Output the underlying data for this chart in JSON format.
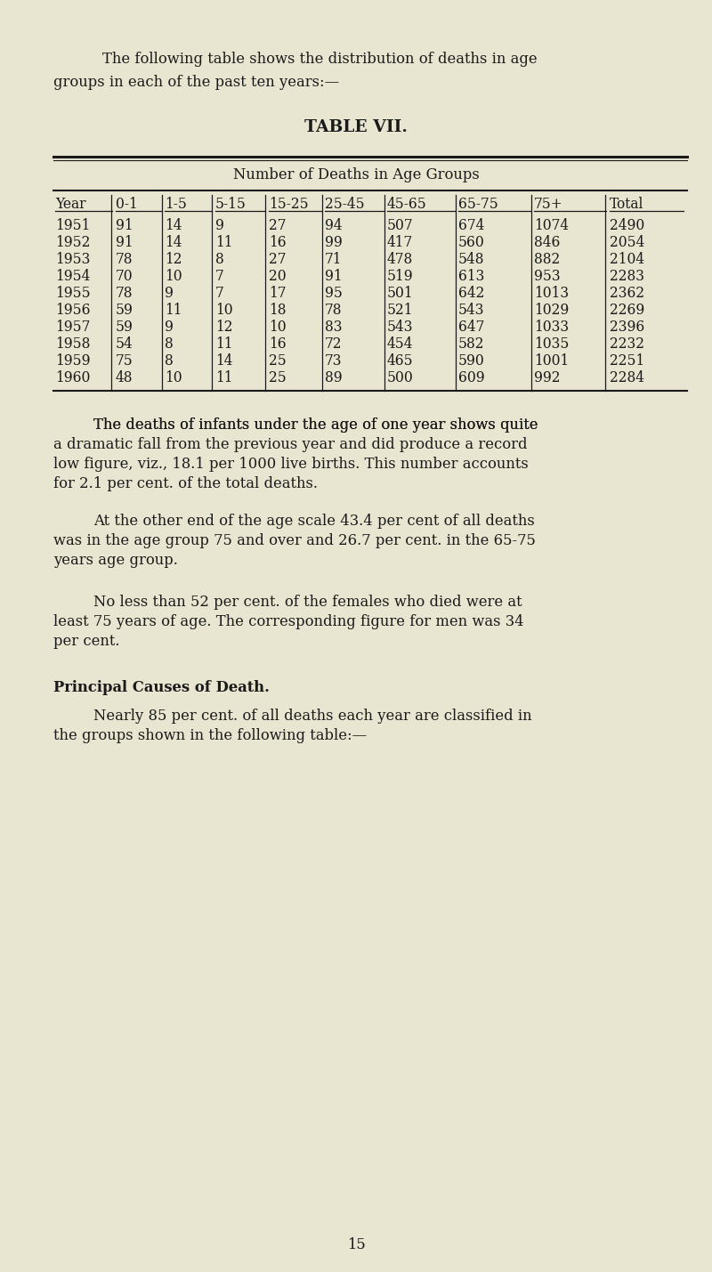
{
  "bg_color": "#e8e5d0",
  "text_color": "#1a1a1a",
  "intro_line1": "The following table shows the distribution of deaths in age",
  "intro_line2": "groups in each of the past ten years:—",
  "table_title": "TABLE VII.",
  "table_subtitle": "Number of Deaths in Age Groups",
  "col_headers": [
    "Year",
    "0-1",
    "1-5",
    "5-15",
    "15-25",
    "25-45",
    "45-65",
    "65-75",
    "75+",
    "Total"
  ],
  "rows": [
    [
      "1951",
      "91",
      "14",
      "9",
      "27",
      "94",
      "507",
      "674",
      "1074",
      "2490"
    ],
    [
      "1952",
      "91",
      "14",
      "11",
      "16",
      "99",
      "417",
      "560",
      "846",
      "2054"
    ],
    [
      "1953",
      "78",
      "12",
      "8",
      "27",
      "71",
      "478",
      "548",
      "882",
      "2104"
    ],
    [
      "1954",
      "70",
      "10",
      "7",
      "20",
      "91",
      "519",
      "613",
      "953",
      "2283"
    ],
    [
      "1955",
      "78",
      "9",
      "7",
      "17",
      "95",
      "501",
      "642",
      "1013",
      "2362"
    ],
    [
      "1956",
      "59",
      "11",
      "10",
      "18",
      "78",
      "521",
      "543",
      "1029",
      "2269"
    ],
    [
      "1957",
      "59",
      "9",
      "12",
      "10",
      "83",
      "543",
      "647",
      "1033",
      "2396"
    ],
    [
      "1958",
      "54",
      "8",
      "11",
      "16",
      "72",
      "454",
      "582",
      "1035",
      "2232"
    ],
    [
      "1959",
      "75",
      "8",
      "14",
      "25",
      "73",
      "465",
      "590",
      "1001",
      "2251"
    ],
    [
      "1960",
      "48",
      "10",
      "11",
      "25",
      "89",
      "500",
      "609",
      "992",
      "2284"
    ]
  ],
  "para1_indent": "    The deaths of infants under the age of one year shows quite",
  "para1_rest": [
    "a dramatic fall from the previous year and did produce a record",
    "low figure, viz., 18.1 per 1000 live births. This number accounts",
    "for 2.1 per cent. of the total deaths."
  ],
  "para2_indent": "    At the other end of the age scale 43.4 per cent of all deaths",
  "para2_rest": [
    "was in the age group 75 and over and 26.7 per cent. in the 65-75",
    "years age group."
  ],
  "para3_indent": "    No less than 52 per cent. of the females who died were at",
  "para3_rest": [
    "least 75 years of age. The corresponding figure for men was 34",
    "per cent."
  ],
  "section_heading": "Principal Causes of Death.",
  "para4_indent": "    Nearly 85 per cent. of all deaths each year are classified in",
  "para4_rest": [
    "the groups shown in the following table:—"
  ],
  "page_number": "15",
  "lm": 0.075,
  "rm": 0.965,
  "fs_body": 11.8,
  "fs_table_data": 11.2,
  "fs_title": 13.5
}
